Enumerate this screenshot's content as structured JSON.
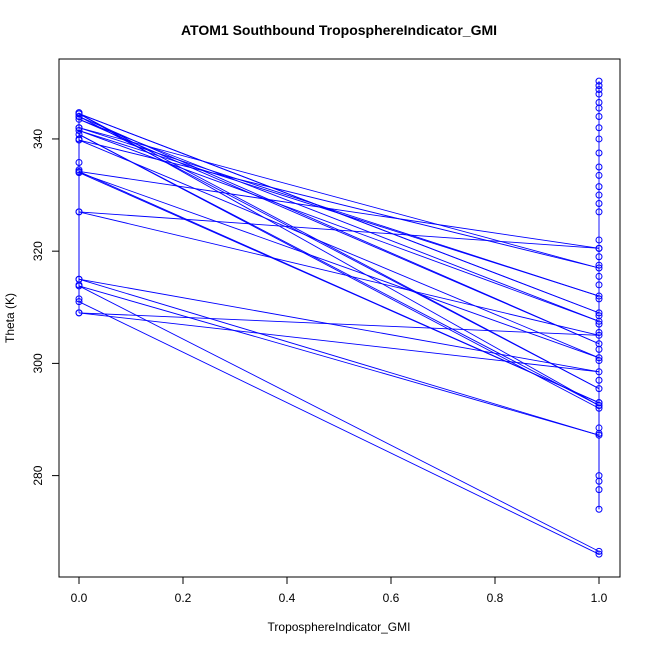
{
  "chart_data": {
    "type": "line",
    "title": "ATOM1 Southbound TroposphereIndicator_GMI",
    "xlabel": "TroposphereIndicator_GMI",
    "ylabel": "Theta (K)",
    "xlim": [
      0.0,
      1.0
    ],
    "ylim": [
      263,
      353
    ],
    "x_ticks": [
      "0.0",
      "0.2",
      "0.4",
      "0.6",
      "0.8",
      "1.0"
    ],
    "y_ticks": [
      "280",
      "300",
      "320",
      "340"
    ],
    "series_color": "#0000ff",
    "marker": "open-circle",
    "x": [
      0,
      0,
      0,
      0,
      0,
      0,
      0,
      0,
      0,
      0,
      0,
      0,
      1,
      1,
      0,
      1,
      0,
      1,
      0,
      1,
      0,
      1,
      0,
      1,
      0,
      1,
      0,
      1,
      0,
      1,
      0,
      1,
      0,
      1,
      0,
      1,
      0,
      1,
      0,
      1,
      0,
      1,
      1,
      1,
      1,
      1,
      1,
      1,
      1,
      1,
      1,
      1,
      1,
      1,
      1,
      1,
      1,
      1,
      1,
      1,
      1,
      1,
      1,
      1,
      1,
      1,
      1,
      1,
      1,
      1,
      1,
      1,
      1,
      1,
      1,
      1,
      1,
      1,
      1
    ],
    "y": [
      309,
      311.5,
      314,
      315,
      327,
      334.5,
      335.8,
      340,
      342,
      344,
      344.7,
      311,
      266,
      266.5,
      313.8,
      287.2,
      315,
      298.5,
      309,
      305,
      327,
      320.5,
      334.2,
      293,
      334,
      301,
      339.8,
      317,
      342,
      312,
      341.5,
      307.5,
      343.5,
      303.5,
      344,
      295.5,
      344.5,
      309,
      344.5,
      292.5,
      340.8,
      292,
      274,
      277.5,
      279,
      280,
      287.5,
      288.5,
      292.5,
      293,
      297,
      300.5,
      302.5,
      305.5,
      307,
      308.5,
      311.5,
      314,
      315.5,
      317.5,
      319,
      320.5,
      322,
      327,
      328.5,
      330,
      331.5,
      333.5,
      335,
      337.5,
      340,
      342,
      344,
      345.5,
      346.5,
      348,
      348.8,
      349.5,
      350.3
    ]
  }
}
